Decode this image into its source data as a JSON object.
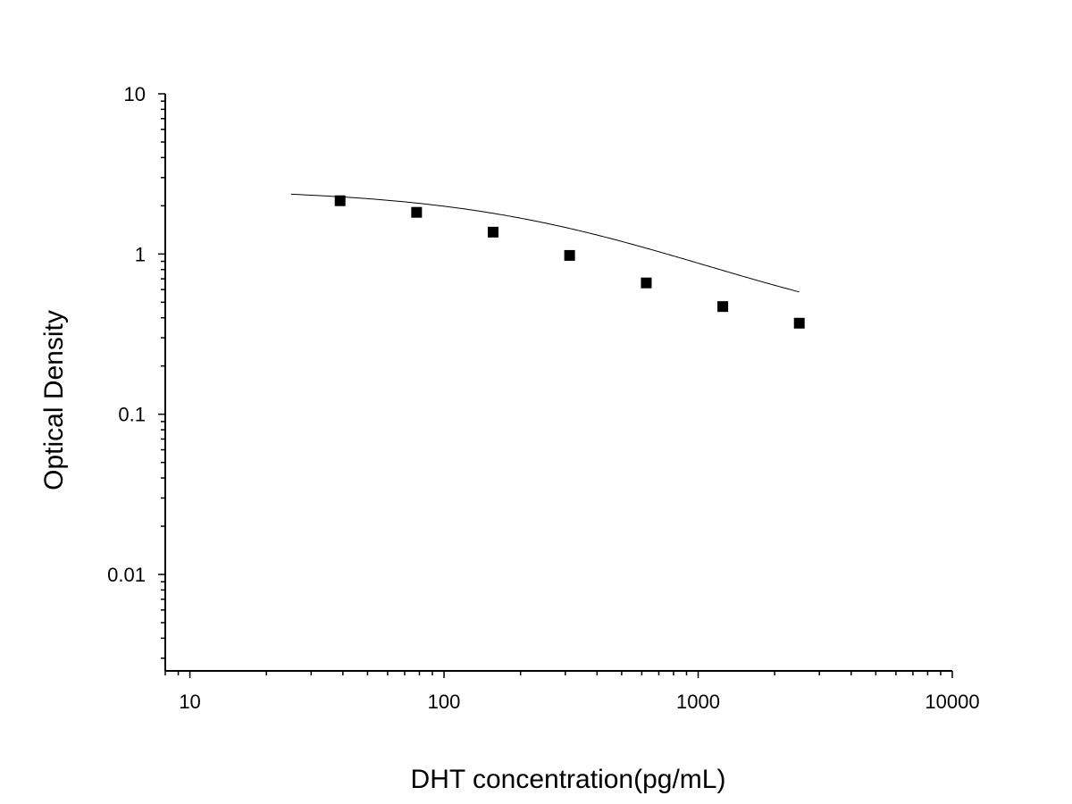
{
  "chart_data": {
    "type": "scatter",
    "xscale": "log",
    "yscale": "log",
    "xlabel": "DHT concentration(pg/mL)",
    "ylabel": "Optical Density",
    "xlim": [
      8,
      10000
    ],
    "ylim": [
      0.0025,
      10
    ],
    "x_ticks": [
      {
        "value": 10,
        "label": "10"
      },
      {
        "value": 100,
        "label": "100"
      },
      {
        "value": 1000,
        "label": "1000"
      },
      {
        "value": 10000,
        "label": "10000"
      }
    ],
    "y_ticks": [
      {
        "value": 0.01,
        "label": "0.01"
      },
      {
        "value": 0.1,
        "label": "0.1"
      },
      {
        "value": 1,
        "label": "1"
      },
      {
        "value": 10,
        "label": "10"
      }
    ],
    "series": [
      {
        "marker": "square",
        "color": "#000000",
        "x": [
          39,
          78,
          156,
          312,
          625,
          1250,
          2500
        ],
        "y": [
          2.15,
          1.82,
          1.37,
          0.98,
          0.66,
          0.47,
          0.37
        ]
      }
    ],
    "fit_curve": {
      "type": "4PL",
      "x_range": [
        25,
        2500
      ],
      "top": 2.55,
      "bottom": 0.28,
      "ec50": 330,
      "hill": 0.93
    },
    "grid": false,
    "legend": "none"
  }
}
